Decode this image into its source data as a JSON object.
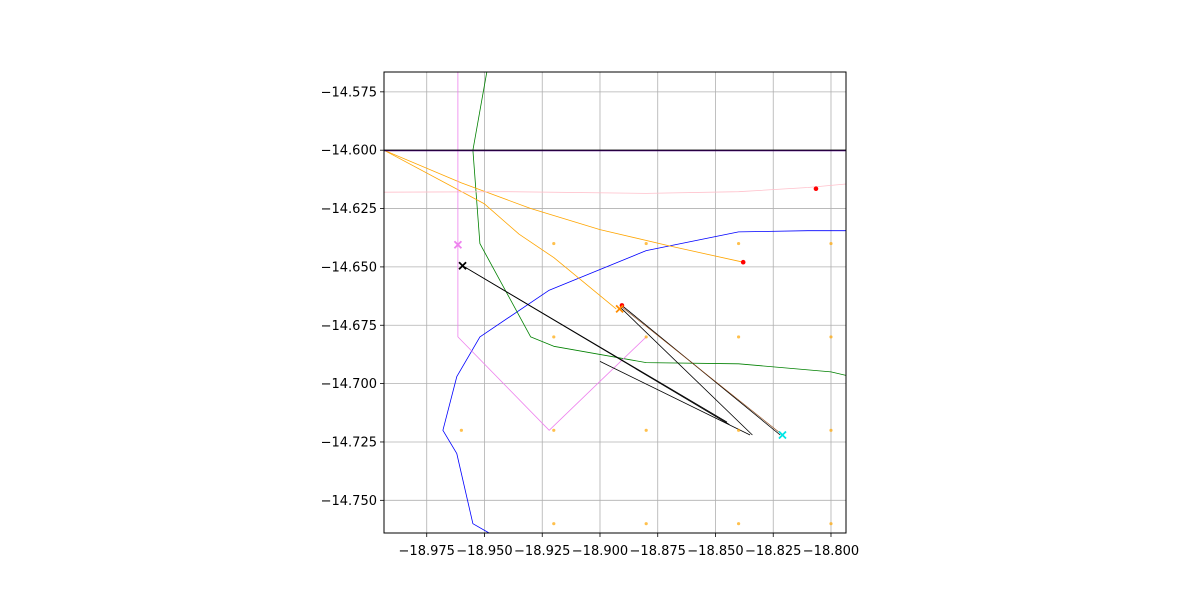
{
  "chart_data": {
    "type": "line",
    "title": "",
    "xlabel": "",
    "ylabel": "",
    "xlim": [
      -18.9935,
      -18.7935
    ],
    "ylim": [
      -14.764,
      -14.5665
    ],
    "grid": true,
    "x_ticks": [
      -18.975,
      -18.95,
      -18.925,
      -18.9,
      -18.875,
      -18.85,
      -18.825,
      -18.8
    ],
    "x_tick_labels": [
      "−18.975",
      "−18.950",
      "−18.925",
      "−18.900",
      "−18.875",
      "−18.850",
      "−18.825",
      "−18.800"
    ],
    "y_ticks": [
      -14.575,
      -14.6,
      -14.625,
      -14.65,
      -14.675,
      -14.7,
      -14.725,
      -14.75
    ],
    "y_tick_labels": [
      "−14.575",
      "−14.600",
      "−14.625",
      "−14.650",
      "−14.675",
      "−14.700",
      "−14.725",
      "−14.750"
    ],
    "series": [
      {
        "color": "#0000ff",
        "width": 0.8,
        "points": [
          [
            -18.948,
            -14.764
          ],
          [
            -18.955,
            -14.76
          ],
          [
            -18.962,
            -14.73
          ],
          [
            -18.968,
            -14.72
          ],
          [
            -18.962,
            -14.697
          ],
          [
            -18.952,
            -14.68
          ],
          [
            -18.922,
            -14.66
          ],
          [
            -18.88,
            -14.643
          ],
          [
            -18.84,
            -14.635
          ],
          [
            -18.81,
            -14.6345
          ],
          [
            -18.7935,
            -14.6345
          ]
        ]
      },
      {
        "color": "#008000",
        "width": 0.8,
        "points": [
          [
            -18.949,
            -14.5665
          ],
          [
            -18.955,
            -14.6
          ],
          [
            -18.952,
            -14.64
          ],
          [
            -18.93,
            -14.68
          ],
          [
            -18.92,
            -14.684
          ],
          [
            -18.88,
            -14.691
          ],
          [
            -18.84,
            -14.6915
          ],
          [
            -18.8,
            -14.695
          ],
          [
            -18.7935,
            -14.6965
          ]
        ]
      },
      {
        "color": "#ffa500",
        "width": 0.8,
        "points": [
          [
            -18.9935,
            -14.6
          ],
          [
            -18.96,
            -14.614
          ],
          [
            -18.93,
            -14.625
          ],
          [
            -18.9,
            -14.634
          ],
          [
            -18.87,
            -14.641
          ],
          [
            -18.838,
            -14.648
          ]
        ]
      },
      {
        "color": "#ffa500",
        "width": 0.8,
        "points": [
          [
            -18.9935,
            -14.6
          ],
          [
            -18.95,
            -14.623
          ],
          [
            -18.935,
            -14.636
          ],
          [
            -18.92,
            -14.646
          ],
          [
            -18.904,
            -14.659
          ],
          [
            -18.893,
            -14.668
          ]
        ]
      },
      {
        "color": "#ffc0cb",
        "width": 0.8,
        "points": [
          [
            -18.9935,
            -14.618
          ],
          [
            -18.94,
            -14.6178
          ],
          [
            -18.88,
            -14.6185
          ],
          [
            -18.84,
            -14.6178
          ],
          [
            -18.81,
            -14.616
          ],
          [
            -18.7935,
            -14.6145
          ]
        ]
      },
      {
        "color": "#ee82ee",
        "width": 0.8,
        "points": [
          [
            -18.9615,
            -14.5665
          ],
          [
            -18.9615,
            -14.68
          ],
          [
            -18.922,
            -14.72
          ],
          [
            -18.9,
            -14.699
          ],
          [
            -18.88,
            -14.68
          ]
        ]
      },
      {
        "color": "#000000",
        "width": 0.8,
        "points": [
          [
            -18.9595,
            -14.6495
          ],
          [
            -18.845,
            -14.7165
          ]
        ]
      },
      {
        "color": "#000000",
        "width": 0.8,
        "points": [
          [
            -18.9595,
            -14.6495
          ],
          [
            -18.844,
            -14.7175
          ]
        ]
      },
      {
        "color": "#000000",
        "width": 0.8,
        "points": [
          [
            -18.891,
            -14.6675
          ],
          [
            -18.834,
            -14.722
          ]
        ]
      },
      {
        "color": "#000000",
        "width": 0.8,
        "points": [
          [
            -18.835,
            -14.722
          ],
          [
            -18.9,
            -14.6905
          ]
        ]
      },
      {
        "color": "#000000",
        "width": 0.8,
        "points": [
          [
            -18.8905,
            -14.6665
          ],
          [
            -18.822,
            -14.722
          ]
        ]
      },
      {
        "color": "#8b4513",
        "width": 0.6,
        "points": [
          [
            -18.891,
            -14.6668
          ],
          [
            -18.822,
            -14.7212
          ]
        ]
      },
      {
        "color": "#000000",
        "width": 1.2,
        "points": [
          [
            -18.9935,
            -14.6
          ],
          [
            -18.7935,
            -14.6
          ]
        ]
      },
      {
        "color": "#4b0082",
        "width": 0.8,
        "points": [
          [
            -18.9935,
            -14.6003
          ],
          [
            -18.7935,
            -14.6003
          ]
        ]
      }
    ],
    "orange_dots": [
      [
        -18.92,
        -14.64
      ],
      [
        -18.88,
        -14.64
      ],
      [
        -18.84,
        -14.64
      ],
      [
        -18.8,
        -14.64
      ],
      [
        -18.92,
        -14.68
      ],
      [
        -18.88,
        -14.68
      ],
      [
        -18.84,
        -14.68
      ],
      [
        -18.8,
        -14.68
      ],
      [
        -18.96,
        -14.72
      ],
      [
        -18.92,
        -14.72
      ],
      [
        -18.88,
        -14.72
      ],
      [
        -18.84,
        -14.72
      ],
      [
        -18.8,
        -14.72
      ],
      [
        -18.92,
        -14.76
      ],
      [
        -18.88,
        -14.76
      ],
      [
        -18.84,
        -14.76
      ],
      [
        -18.8,
        -14.76
      ]
    ],
    "red_dots": [
      [
        -18.8065,
        -14.6165
      ],
      [
        -18.838,
        -14.648
      ],
      [
        -18.8905,
        -14.6665
      ]
    ],
    "markers": [
      {
        "color": "#ee82ee",
        "x": -18.9615,
        "y": -14.6405
      },
      {
        "color": "#000000",
        "x": -18.9595,
        "y": -14.6495
      },
      {
        "color": "#ff8c00",
        "x": -18.8915,
        "y": -14.668
      },
      {
        "color": "#00e5e5",
        "x": -18.821,
        "y": -14.722
      }
    ]
  }
}
